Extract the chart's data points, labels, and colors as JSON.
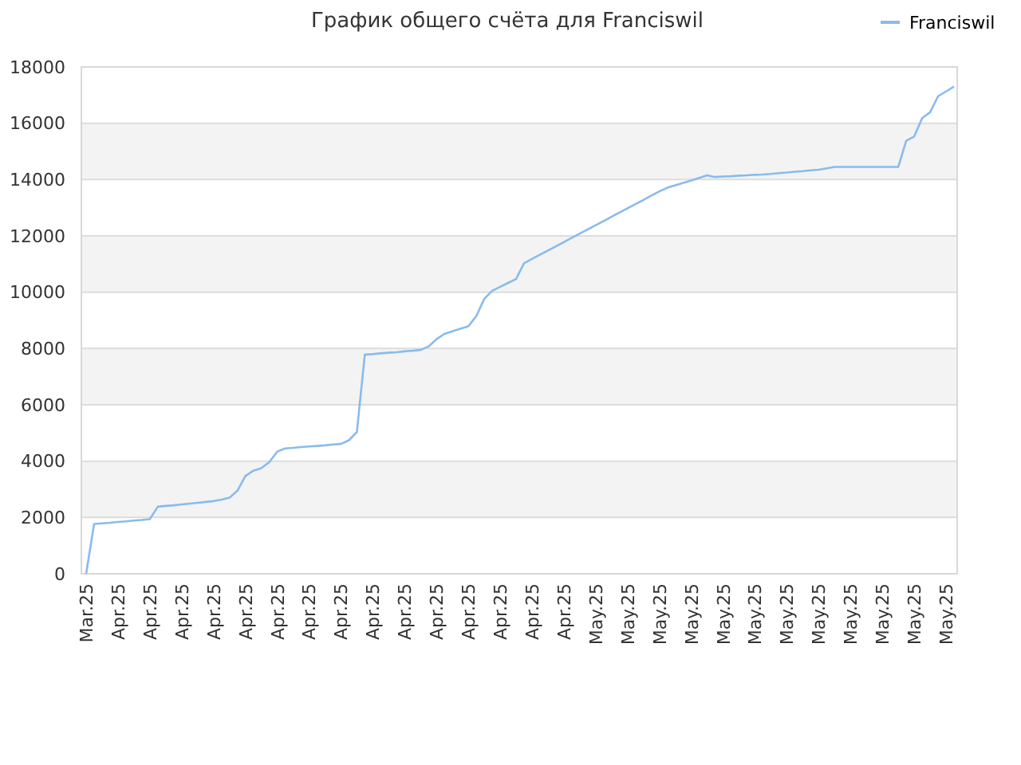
{
  "chart_data": {
    "type": "line",
    "title": "График общего счёта для Franciswil",
    "legend": "top right",
    "grid": "y",
    "categories": [
      "Mar.25",
      null,
      null,
      null,
      "Apr.25",
      null,
      null,
      null,
      "Apr.25",
      null,
      null,
      null,
      "Apr.25",
      null,
      null,
      null,
      "Apr.25",
      null,
      null,
      null,
      "Apr.25",
      null,
      null,
      null,
      "Apr.25",
      null,
      null,
      null,
      "Apr.25",
      null,
      null,
      null,
      "Apr.25",
      null,
      null,
      null,
      "Apr.25",
      null,
      null,
      null,
      "Apr.25",
      null,
      null,
      null,
      "Apr.25",
      null,
      null,
      null,
      "Apr.25",
      null,
      null,
      null,
      "Apr.25",
      null,
      null,
      null,
      "Apr.25",
      null,
      null,
      null,
      "Apr.25",
      null,
      null,
      null,
      "May.25",
      null,
      null,
      null,
      "May.25",
      null,
      null,
      null,
      "May.25",
      null,
      null,
      null,
      "May.25",
      null,
      null,
      null,
      "May.25",
      null,
      null,
      null,
      "May.25",
      null,
      null,
      null,
      "May.25",
      null,
      null,
      null,
      "May.25",
      null,
      null,
      null,
      "May.25",
      null,
      null,
      null,
      "May.25",
      null,
      null,
      null,
      "May.25",
      null,
      null,
      null,
      "May.25",
      null
    ],
    "ylim": [
      0,
      18000
    ],
    "yticks": [
      0,
      2000,
      4000,
      6000,
      8000,
      10000,
      12000,
      14000,
      16000,
      18000
    ],
    "series": [
      {
        "name": "Franciswil",
        "color": "#88bbee",
        "values": [
          0,
          1770,
          1790,
          1810,
          1840,
          1860,
          1890,
          1910,
          1940,
          2380,
          2410,
          2430,
          2460,
          2490,
          2520,
          2550,
          2580,
          2630,
          2700,
          2950,
          3470,
          3660,
          3750,
          3960,
          4340,
          4450,
          4470,
          4500,
          4520,
          4540,
          4560,
          4590,
          4610,
          4740,
          5030,
          7780,
          7800,
          7830,
          7850,
          7870,
          7900,
          7920,
          7950,
          8070,
          8330,
          8520,
          8610,
          8700,
          8790,
          9150,
          9760,
          10050,
          10190,
          10330,
          10470,
          11030,
          11180,
          11330,
          11480,
          11630,
          11780,
          11930,
          12080,
          12230,
          12380,
          12530,
          12680,
          12830,
          12980,
          13130,
          13280,
          13430,
          13580,
          13710,
          13800,
          13880,
          13970,
          14060,
          14150,
          14090,
          14110,
          14120,
          14140,
          14150,
          14170,
          14180,
          14200,
          14230,
          14250,
          14280,
          14300,
          14330,
          14350,
          14400,
          14450,
          14450,
          14450,
          14450,
          14450,
          14450,
          14450,
          14450,
          14450,
          15380,
          15530,
          16180,
          16390,
          16960,
          17130,
          17300
        ]
      }
    ]
  }
}
